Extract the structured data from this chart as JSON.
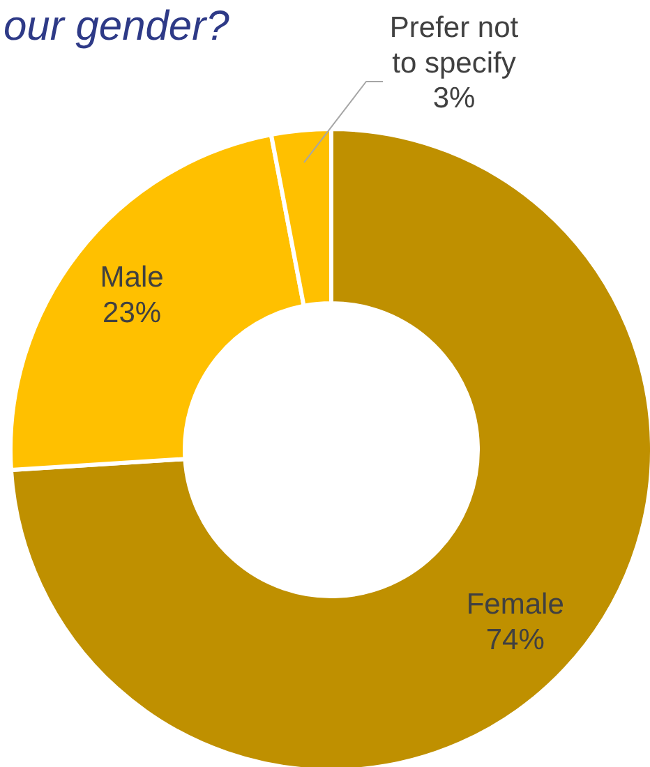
{
  "chart_data": {
    "type": "donut",
    "title": "our gender?",
    "categories": [
      "Female",
      "Male",
      "Prefer not to specify"
    ],
    "values": [
      74,
      23,
      3
    ],
    "colors": [
      "#bf9000",
      "#ffc000",
      "#ffc000"
    ],
    "value_labels": [
      "74%",
      "23%",
      "3%"
    ]
  }
}
